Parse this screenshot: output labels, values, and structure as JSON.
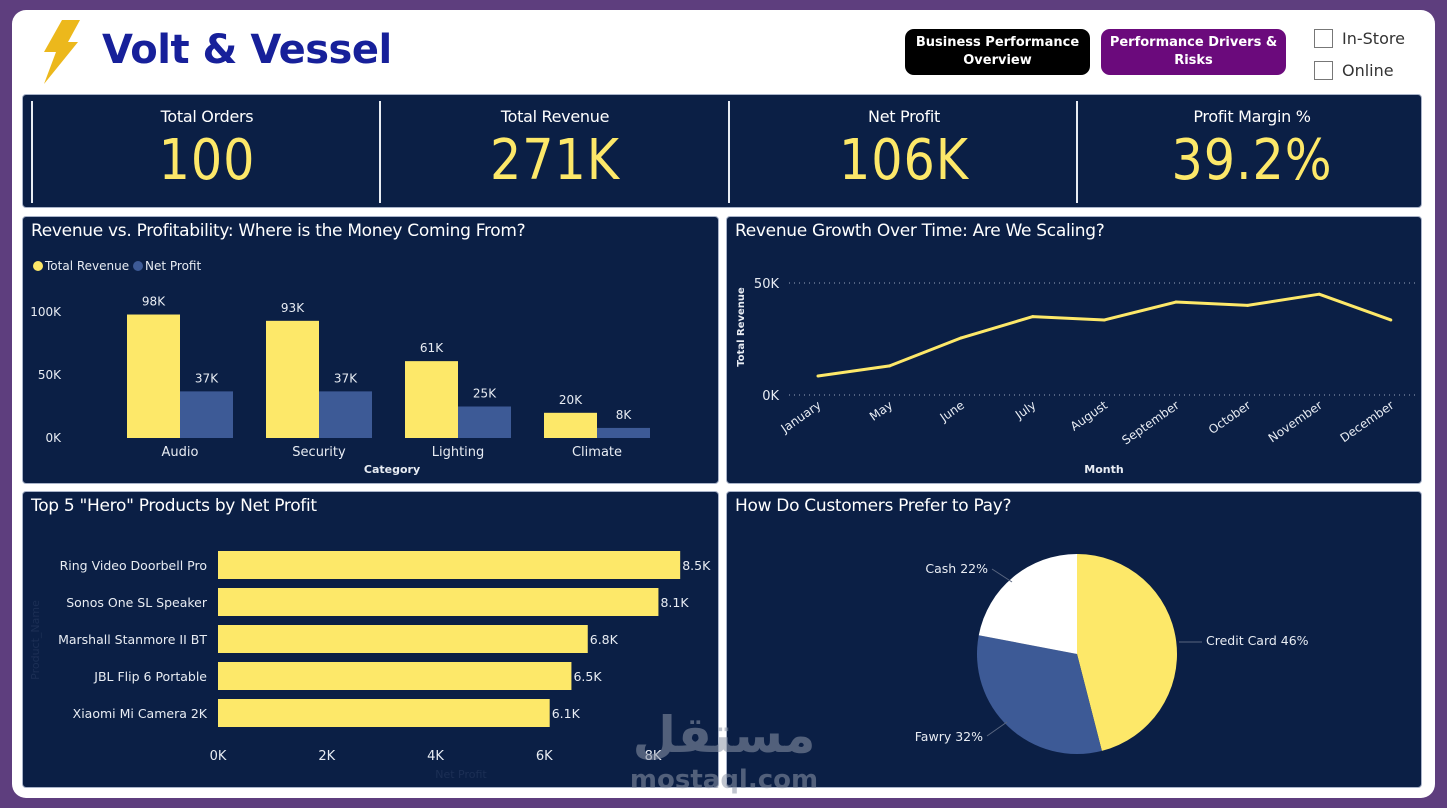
{
  "brand": {
    "name": "Volt & Vessel",
    "logo_icon": "lightning-bolt-icon"
  },
  "nav": {
    "overview_label": "Business Performance Overview",
    "drivers_label": "Performance Drivers & Risks"
  },
  "slicers": [
    {
      "label": "In-Store",
      "checked": false
    },
    {
      "label": "Online",
      "checked": false
    }
  ],
  "kpis": [
    {
      "label": "Total Orders",
      "value": "100"
    },
    {
      "label": "Total Revenue",
      "value": "271K"
    },
    {
      "label": "Net Profit",
      "value": "106K"
    },
    {
      "label": "Profit Margin %",
      "value": "39.2%"
    }
  ],
  "colors": {
    "yellow": "#fde869",
    "blue": "#3d5a96",
    "navy": "#0b1f45",
    "white": "#ffffff",
    "brand_blue": "#17209a",
    "purple": "#6b0a7c"
  },
  "watermark": {
    "arabic": "مستقل",
    "latin": "mostaql.com"
  },
  "chart_data": [
    {
      "id": "revenue-vs-profit",
      "type": "bar",
      "title": "Revenue vs. Profitability: Where is the Money Coming From?",
      "categories": [
        "Audio",
        "Security",
        "Lighting",
        "Climate"
      ],
      "series": [
        {
          "name": "Total Revenue",
          "values": [
            98,
            93,
            61,
            20
          ],
          "labels": [
            "98K",
            "93K",
            "61K",
            "20K"
          ],
          "color": "#fde869"
        },
        {
          "name": "Net Profit",
          "values": [
            37,
            37,
            25,
            8
          ],
          "labels": [
            "37K",
            "37K",
            "25K",
            "8K"
          ],
          "color": "#3d5a96"
        }
      ],
      "units": "K",
      "xlabel": "Category",
      "ylabel": "",
      "ylim": [
        0,
        100
      ],
      "yticks": [
        0,
        50,
        100
      ],
      "ytick_labels": [
        "0K",
        "50K",
        "100K"
      ],
      "legend": "top-left",
      "grid": false
    },
    {
      "id": "revenue-growth",
      "type": "line",
      "title": "Revenue Growth Over Time: Are We Scaling?",
      "x": [
        "January",
        "May",
        "June",
        "July",
        "August",
        "September",
        "October",
        "November",
        "December"
      ],
      "series": [
        {
          "name": "Total Revenue",
          "values": [
            8.5,
            13,
            25.5,
            35,
            33.5,
            41.5,
            40,
            45,
            33.5
          ],
          "color": "#fde869"
        }
      ],
      "units": "K",
      "xlabel": "Month",
      "ylabel": "Total Revenue",
      "ylim": [
        0,
        50
      ],
      "yticks": [
        0,
        50
      ],
      "ytick_labels": [
        "0K",
        "50K"
      ],
      "grid": true
    },
    {
      "id": "hero-products",
      "type": "bar",
      "orientation": "horizontal",
      "title": "Top 5 \"Hero\" Products by Net Profit",
      "categories": [
        "Ring Video Doorbell Pro",
        "Sonos One SL Speaker",
        "Marshall Stanmore II BT",
        "JBL Flip 6 Portable",
        "Xiaomi Mi Camera 2K"
      ],
      "values": [
        8.5,
        8.1,
        6.8,
        6.5,
        6.1
      ],
      "labels": [
        "8.5K",
        "8.1K",
        "6.8K",
        "6.5K",
        "6.1K"
      ],
      "units": "K",
      "xlabel": "Net Profit",
      "ylabel": "Product_Name",
      "xlim": [
        0,
        8.5
      ],
      "xticks": [
        0,
        2,
        4,
        6,
        8
      ],
      "xtick_labels": [
        "0K",
        "2K",
        "4K",
        "6K",
        "8K"
      ],
      "color": "#fde869"
    },
    {
      "id": "payment-methods",
      "type": "pie",
      "title": "How Do Customers Prefer to Pay?",
      "slices": [
        {
          "label": "Credit Card",
          "value": 46,
          "text": "Credit Card 46%",
          "color": "#fde869"
        },
        {
          "label": "Fawry",
          "value": 32,
          "text": "Fawry 32%",
          "color": "#3d5a96"
        },
        {
          "label": "Cash",
          "value": 22,
          "text": "Cash 22%",
          "color": "#ffffff"
        }
      ]
    }
  ]
}
